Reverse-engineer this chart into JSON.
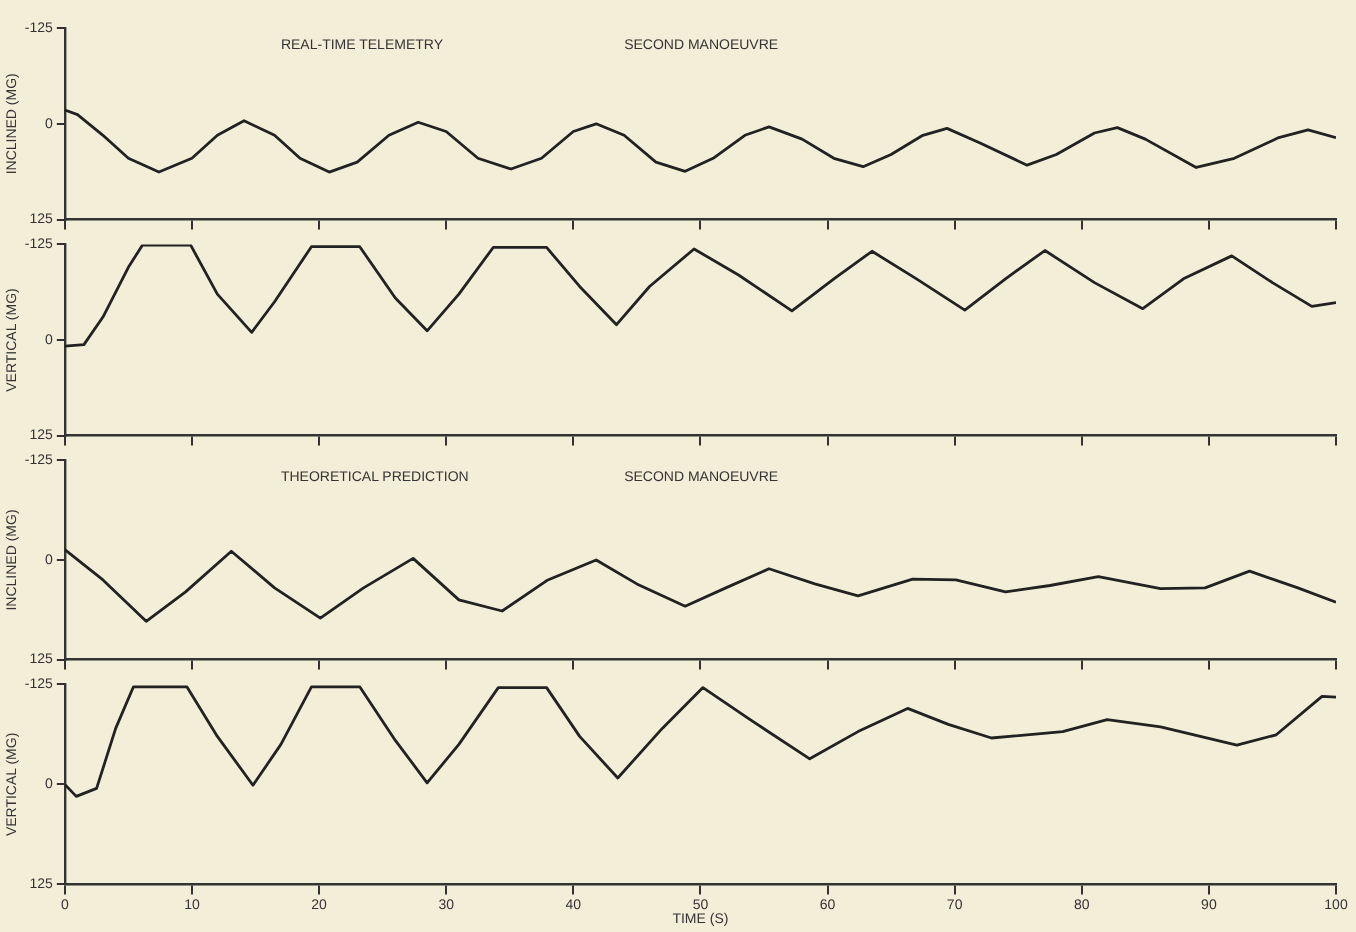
{
  "chart_data": [
    {
      "type": "line",
      "ylabel": "INCLINED (MG)",
      "annotations": [
        "REAL-TIME TELEMETRY",
        "SECOND MANOEUVRE"
      ],
      "xlim": [
        0,
        100
      ],
      "xticks": [
        0,
        10,
        20,
        30,
        40,
        50,
        60,
        70,
        80,
        90,
        100
      ],
      "ylim": [
        125,
        -125
      ],
      "yticks": [
        -125,
        0,
        125
      ],
      "tick_labels": "y",
      "grid": false,
      "legend": false,
      "x": [
        0,
        1,
        3,
        5,
        7.4,
        10,
        12,
        14.1,
        16.5,
        18.5,
        20.8,
        23,
        25.5,
        27.8,
        30,
        32.5,
        35.1,
        37.5,
        40,
        41.8,
        44,
        46.5,
        48.8,
        51,
        53.5,
        55.4,
        58,
        60.5,
        62.8,
        65,
        67.5,
        69.4,
        72,
        75.7,
        78,
        81,
        82.8,
        85,
        89,
        92,
        95.5,
        97.8,
        100
      ],
      "series": [
        {
          "color": "#222222",
          "values": [
            -18,
            -12,
            15,
            45,
            63,
            45,
            15,
            -4,
            15,
            45,
            63,
            50,
            15,
            -2,
            10,
            45,
            59,
            45,
            10,
            0,
            15,
            50,
            62,
            45,
            15,
            4,
            20,
            45,
            56,
            40,
            15,
            6,
            25,
            54,
            40,
            12,
            5,
            20,
            57,
            45,
            18,
            8,
            18
          ]
        }
      ]
    },
    {
      "type": "line",
      "ylabel": "VERTICAL (MG)",
      "xlim": [
        0,
        100
      ],
      "xticks": [
        0,
        10,
        20,
        30,
        40,
        50,
        60,
        70,
        80,
        90,
        100
      ],
      "ylim": [
        125,
        -125
      ],
      "yticks": [
        -125,
        0,
        125
      ],
      "tick_labels": "y",
      "grid": false,
      "legend": false,
      "x": [
        0,
        1.5,
        3,
        5,
        6.1,
        9.9,
        12,
        14.7,
        16.5,
        19.4,
        23.2,
        26,
        28.5,
        31,
        33.7,
        37.9,
        40.5,
        43.4,
        46,
        49.5,
        53,
        57.2,
        60.5,
        63.5,
        67,
        70.8,
        74,
        77.1,
        81,
        84.8,
        88,
        91.8,
        95,
        98.1,
        100
      ],
      "series": [
        {
          "color": "#222222",
          "values": [
            8,
            6,
            -30,
            -95,
            -124,
            -124,
            -60,
            -10,
            -50,
            -122,
            -122,
            -55,
            -12,
            -60,
            -121,
            -121,
            -70,
            -20,
            -70,
            -119,
            -85,
            -38,
            -80,
            -116,
            -80,
            -39,
            -80,
            -117,
            -75,
            -41,
            -80,
            -110,
            -75,
            -44,
            -49
          ]
        }
      ]
    },
    {
      "type": "line",
      "ylabel": "INCLINED (MG)",
      "annotations": [
        "THEORETICAL PREDICTION",
        "SECOND MANOEUVRE"
      ],
      "xlim": [
        0,
        100
      ],
      "xticks": [
        0,
        10,
        20,
        30,
        40,
        50,
        60,
        70,
        80,
        90,
        100
      ],
      "ylim": [
        125,
        -125
      ],
      "yticks": [
        -125,
        0,
        125
      ],
      "tick_labels": "y",
      "grid": false,
      "legend": false,
      "x": [
        0,
        3,
        6.4,
        9.5,
        13.1,
        16.5,
        20.1,
        23.5,
        27.4,
        31,
        34.4,
        38,
        41.8,
        45,
        48.8,
        52,
        55.4,
        59,
        62.4,
        66.7,
        70.1,
        74,
        77.5,
        81.3,
        86.2,
        89.7,
        93.2,
        97,
        100
      ],
      "series": [
        {
          "color": "#222222",
          "values": [
            -13,
            25,
            77,
            40,
            -11,
            35,
            73,
            35,
            -2,
            50,
            64,
            25,
            0,
            30,
            58,
            35,
            11,
            30,
            45,
            24,
            25,
            40,
            32,
            21,
            36,
            35,
            14,
            35,
            53
          ]
        }
      ]
    },
    {
      "type": "line",
      "ylabel": "VERTICAL (MG)",
      "xlabel": "TIME (S)",
      "xlim": [
        0,
        100
      ],
      "xticks": [
        0,
        10,
        20,
        30,
        40,
        50,
        60,
        70,
        80,
        90,
        100
      ],
      "ylim": [
        125,
        -125
      ],
      "yticks": [
        -125,
        0,
        125
      ],
      "grid": false,
      "legend": false,
      "x": [
        0,
        0.9,
        2.5,
        4,
        5.4,
        9.6,
        12,
        14.8,
        17,
        19.4,
        23.2,
        26,
        28.5,
        31,
        34.1,
        37.9,
        40.5,
        43.5,
        47,
        50.2,
        54,
        58.6,
        62.4,
        66.3,
        69.5,
        72.9,
        78.5,
        82,
        86.2,
        92.2,
        95.3,
        98.9,
        100
      ],
      "series": [
        {
          "color": "#222222",
          "values": [
            0,
            15,
            5,
            -70,
            -122,
            -122,
            -60,
            1,
            -50,
            -122,
            -122,
            -55,
            -2,
            -50,
            -121,
            -121,
            -60,
            -8,
            -70,
            -121,
            -80,
            -32,
            -66,
            -95,
            -75,
            -58,
            -66,
            -81,
            -72,
            -49,
            -62,
            -110,
            -109
          ]
        }
      ]
    }
  ]
}
